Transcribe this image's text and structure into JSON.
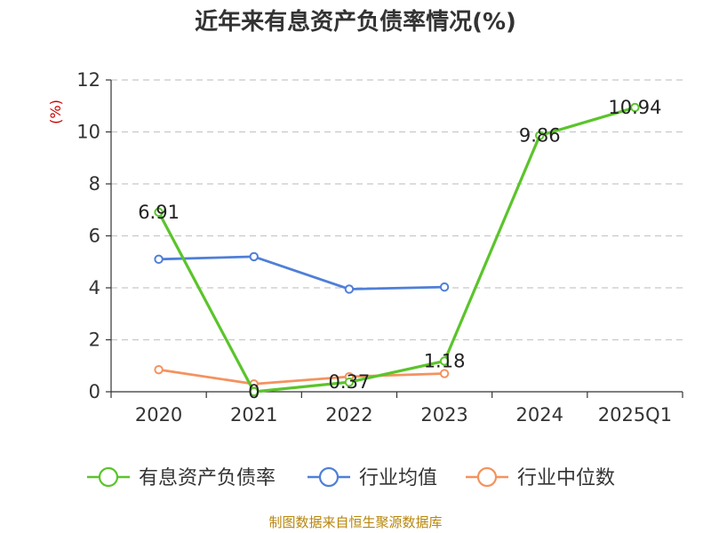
{
  "chart_data": {
    "type": "line",
    "title": "近年来有息资产负债率情况(%)",
    "ylabel": "(%)",
    "xlabel": "",
    "categories": [
      "2020",
      "2021",
      "2022",
      "2023",
      "2024",
      "2025Q1"
    ],
    "ylim": [
      0,
      12
    ],
    "yticks": [
      0,
      2,
      4,
      6,
      8,
      10,
      12
    ],
    "grid": "horizontal dashed",
    "legend_position": "bottom",
    "series": [
      {
        "name": "有息资产负债率",
        "color": "#5bc42b",
        "values": [
          6.91,
          0,
          0.37,
          1.18,
          9.86,
          10.94
        ],
        "labels": [
          "6.91",
          "0",
          "0.37",
          "1.18",
          "9.86",
          "10.94"
        ]
      },
      {
        "name": "行业均值",
        "color": "#4f7fd8",
        "values": [
          5.1,
          5.2,
          3.95,
          4.03,
          null,
          null
        ]
      },
      {
        "name": "行业中位数",
        "color": "#f4925e",
        "values": [
          0.85,
          0.3,
          0.58,
          0.7,
          null,
          null
        ]
      }
    ]
  },
  "source": "制图数据来自恒生聚源数据库"
}
